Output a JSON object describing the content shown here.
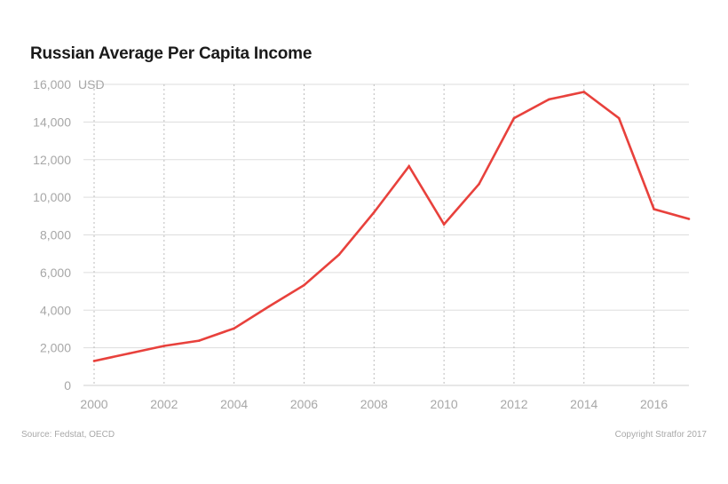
{
  "chart_data": {
    "type": "line",
    "title": "Russian Average Per Capita Income",
    "ylabel": "",
    "xlabel": "",
    "y_unit": "USD",
    "xlim": [
      2000,
      2017
    ],
    "ylim": [
      0,
      16000
    ],
    "x_ticks": [
      2000,
      2002,
      2004,
      2006,
      2008,
      2010,
      2012,
      2014,
      2016
    ],
    "x_tick_labels": [
      "2000",
      "2002",
      "2004",
      "2006",
      "2008",
      "2010",
      "2012",
      "2014",
      "2016"
    ],
    "y_ticks": [
      0,
      2000,
      4000,
      6000,
      8000,
      10000,
      12000,
      14000,
      16000
    ],
    "y_tick_labels": [
      "0",
      "2,000",
      "4,000",
      "6,000",
      "8,000",
      "10,000",
      "12,000",
      "14,000",
      "16,000"
    ],
    "grid": {
      "horizontal": "solid",
      "vertical": "dotted"
    },
    "series": [
      {
        "color": "#e8413c",
        "x": [
          2000,
          2001,
          2002,
          2003,
          2004,
          2005,
          2006,
          2007,
          2008,
          2009,
          2010,
          2011,
          2012,
          2013,
          2014,
          2015,
          2016,
          2017
        ],
        "y": [
          1300,
          1700,
          2100,
          2380,
          3030,
          4200,
          5330,
          6950,
          9200,
          11650,
          8560,
          10700,
          14200,
          15200,
          15600,
          14200,
          9370,
          8850
        ]
      }
    ]
  },
  "footer": {
    "source": "Source: Fedstat, OECD",
    "copyright": "Copyright Stratfor 2017"
  }
}
